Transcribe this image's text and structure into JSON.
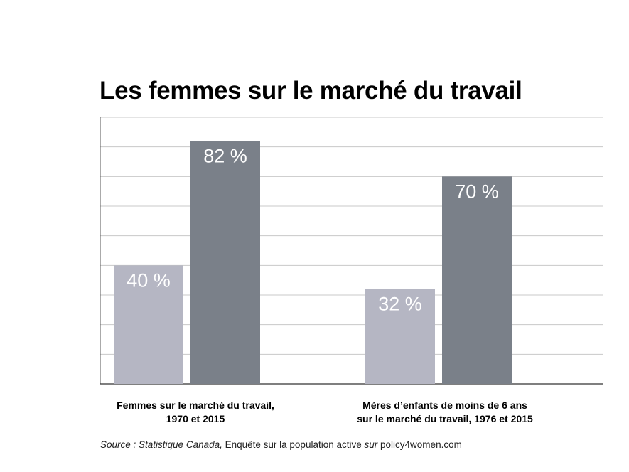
{
  "title": "Les femmes sur le marché du travail",
  "chart_data": {
    "type": "bar",
    "categories": [
      "Femmes sur le marché du travail,\n1970 et 2015",
      "Mères d’enfants de moins de 6 ans\nsur le marché du travail, 1976 et 2015"
    ],
    "series": [
      {
        "values": [
          40,
          32
        ],
        "labels": [
          "40 %",
          "32 %"
        ],
        "color": "#b5b6c3"
      },
      {
        "values": [
          82,
          70
        ],
        "labels": [
          "82 %",
          "70 %"
        ],
        "color": "#7a8089"
      }
    ],
    "ylim": [
      0,
      90
    ],
    "grid": true,
    "gridline_step": 10
  },
  "source": {
    "prefix": "Source : Statistique Canada,",
    "middle": " Enquête sur la population active ",
    "sur": "sur",
    "link": "policy4women.com"
  }
}
